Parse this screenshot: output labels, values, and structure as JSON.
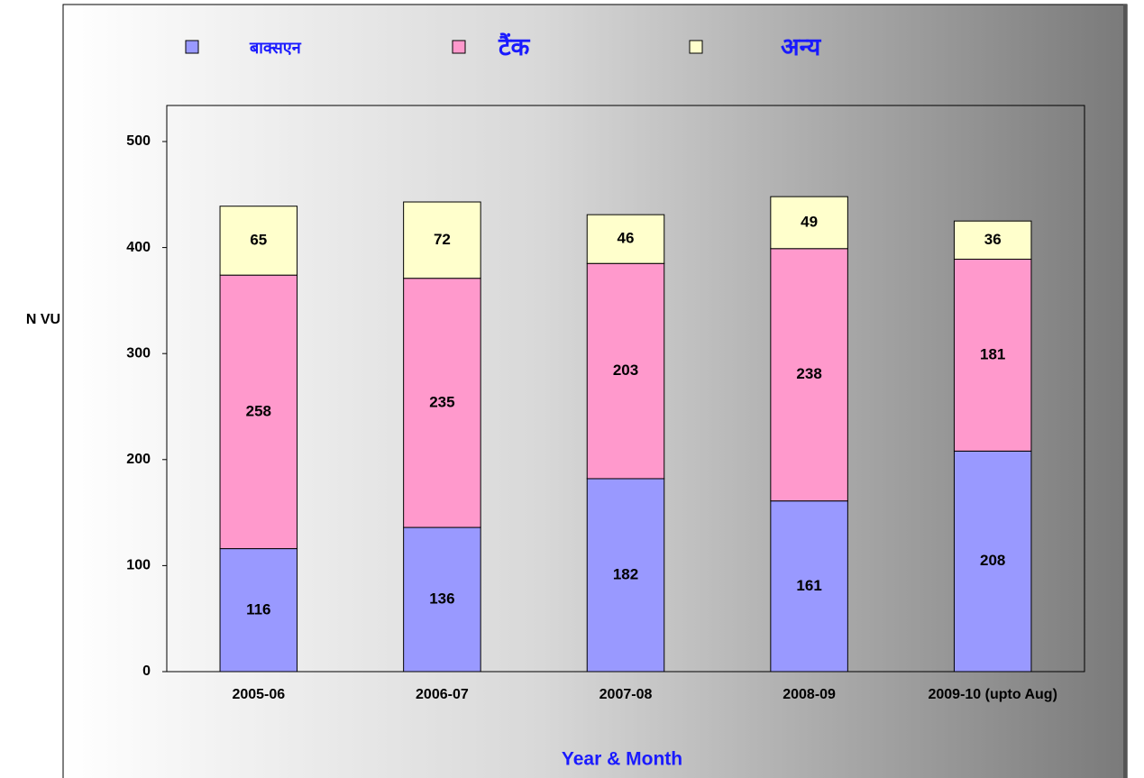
{
  "chart_data": {
    "type": "stacked_bar",
    "x_label": "Year & Month",
    "y_label": "N VU",
    "categories": [
      "2005-06",
      "2006-07",
      "2007-08",
      "2008-09",
      "2009-10 (upto Aug)"
    ],
    "series": [
      {
        "name": "बाक्सएन",
        "color": "#9999ff",
        "values": [
          116,
          136,
          182,
          161,
          208
        ]
      },
      {
        "name": "टैंक",
        "color": "#ff99cc",
        "values": [
          258,
          235,
          203,
          238,
          181
        ]
      },
      {
        "name": "अन्य",
        "color": "#ffffcc",
        "values": [
          65,
          72,
          46,
          49,
          36
        ]
      }
    ],
    "ylim": [
      0,
      534
    ],
    "yticks": [
      0,
      100,
      200,
      300,
      400,
      500
    ],
    "legend": "top"
  }
}
